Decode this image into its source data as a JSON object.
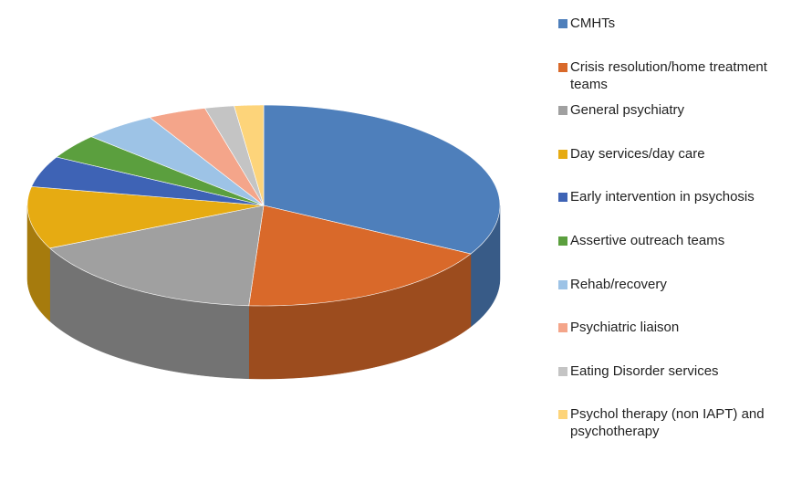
{
  "chart_data": {
    "type": "pie",
    "three_d": true,
    "categories": [
      "CMHTs",
      "Crisis resolution/home treatment teams",
      "General psychiatry",
      "Day services/day care",
      "Early intervention in psychosis",
      "Assertive outreach teams",
      "Rehab/recovery",
      "Psychiatric liaison",
      "Eating Disorder services",
      "Psychol therapy (non IAPT) and psychotherapy"
    ],
    "values": [
      33,
      18,
      17,
      10,
      5,
      4,
      5,
      4,
      2,
      2
    ],
    "colors": [
      "#4e7fbb",
      "#d9692a",
      "#a0a0a0",
      "#e6ab12",
      "#3e63b5",
      "#5b9f3e",
      "#9dc3e6",
      "#f4a58a",
      "#c4c4c4",
      "#fdd47a"
    ],
    "legend": "right"
  }
}
